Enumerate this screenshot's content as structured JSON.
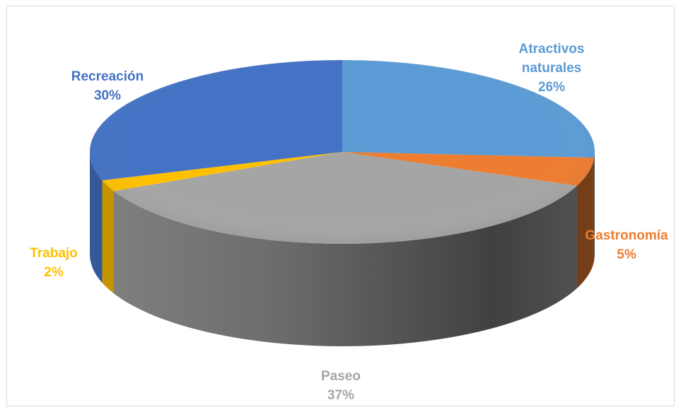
{
  "chart_data": {
    "type": "pie",
    "style": "3d",
    "categories": [
      "Atractivos naturales",
      "Gastronomía",
      "Paseo",
      "Trabajo",
      "Recreación"
    ],
    "values": [
      26,
      5,
      37,
      2,
      30
    ],
    "labels": [
      {
        "line1": "Atractivos",
        "line2": "naturales",
        "pct": "26%"
      },
      {
        "line1": "Gastronomía",
        "line2": "",
        "pct": "5%"
      },
      {
        "line1": "Paseo",
        "line2": "",
        "pct": "37%"
      },
      {
        "line1": "Trabajo",
        "line2": "",
        "pct": "2%"
      },
      {
        "line1": "Recreación",
        "line2": "",
        "pct": "30%"
      }
    ],
    "colors": [
      "#5b9bd5",
      "#ed7d31",
      "#a5a5a5",
      "#ffc000",
      "#4472c4"
    ],
    "label_colors": [
      "#5b9bd5",
      "#ed7d31",
      "#a5a5a5",
      "#ffc000",
      "#4472c4"
    ],
    "legend": "none",
    "start_angle": "12 o'clock",
    "direction": "clockwise"
  }
}
